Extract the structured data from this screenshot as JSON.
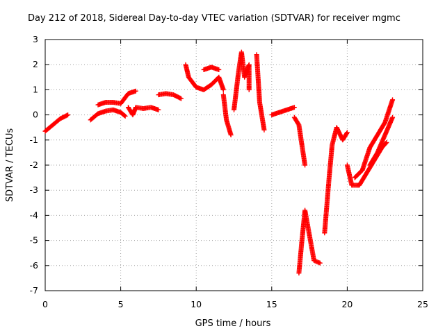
{
  "chart_data": {
    "type": "scatter",
    "title": "Day 212 of 2018, Sidereal Day-to-day VTEC variation (SDTVAR) for receiver mgmc",
    "xlabel": "GPS time / hours",
    "ylabel": "SDTVAR / TECUs",
    "xlim": [
      0,
      25
    ],
    "ylim": [
      -7,
      3
    ],
    "xticks": [
      "0",
      "5",
      "10",
      "15",
      "20",
      "25"
    ],
    "yticks": [
      "3",
      "2",
      "1",
      "0",
      "-1",
      "-2",
      "-3",
      "-4",
      "-5",
      "-6",
      "-7"
    ],
    "grid": true,
    "marker": "+",
    "series": [
      {
        "name": "SDTVAR",
        "color": "#ff0000",
        "segments": [
          [
            [
              0.0,
              -0.65
            ],
            [
              0.5,
              -0.4
            ],
            [
              1.0,
              -0.15
            ],
            [
              1.5,
              0.0
            ]
          ],
          [
            [
              3.0,
              -0.2
            ],
            [
              3.5,
              0.05
            ],
            [
              4.0,
              0.15
            ],
            [
              4.5,
              0.2
            ],
            [
              5.0,
              0.1
            ],
            [
              5.3,
              -0.05
            ]
          ],
          [
            [
              3.5,
              0.4
            ],
            [
              4.0,
              0.5
            ],
            [
              4.5,
              0.5
            ],
            [
              5.0,
              0.45
            ],
            [
              5.5,
              0.85
            ],
            [
              6.0,
              0.95
            ]
          ],
          [
            [
              5.5,
              0.3
            ],
            [
              5.8,
              0.0
            ],
            [
              6.0,
              0.3
            ],
            [
              6.5,
              0.25
            ],
            [
              7.0,
              0.3
            ],
            [
              7.5,
              0.2
            ]
          ],
          [
            [
              7.5,
              0.8
            ],
            [
              8.0,
              0.85
            ],
            [
              8.5,
              0.8
            ],
            [
              9.0,
              0.65
            ]
          ],
          [
            [
              9.3,
              2.0
            ],
            [
              9.5,
              1.5
            ],
            [
              10.0,
              1.1
            ],
            [
              10.5,
              1.0
            ],
            [
              11.0,
              1.2
            ],
            [
              11.5,
              1.5
            ],
            [
              11.8,
              1.0
            ]
          ],
          [
            [
              10.5,
              1.8
            ],
            [
              11.0,
              1.9
            ],
            [
              11.5,
              1.8
            ]
          ],
          [
            [
              11.8,
              0.8
            ],
            [
              12.0,
              -0.2
            ],
            [
              12.3,
              -0.8
            ]
          ],
          [
            [
              12.5,
              0.2
            ],
            [
              12.8,
              1.7
            ],
            [
              13.0,
              2.5
            ],
            [
              13.2,
              1.5
            ],
            [
              13.5,
              2.0
            ],
            [
              13.5,
              1.0
            ]
          ],
          [
            [
              14.0,
              2.4
            ],
            [
              14.2,
              0.5
            ],
            [
              14.5,
              -0.6
            ]
          ],
          [
            [
              15.0,
              0.0
            ],
            [
              15.5,
              0.1
            ],
            [
              16.0,
              0.2
            ],
            [
              16.5,
              0.3
            ]
          ],
          [
            [
              16.5,
              -0.1
            ],
            [
              16.8,
              -0.4
            ],
            [
              17.2,
              -2.0
            ]
          ],
          [
            [
              16.8,
              -6.3
            ],
            [
              17.0,
              -5.0
            ],
            [
              17.2,
              -3.8
            ],
            [
              17.5,
              -4.8
            ],
            [
              17.8,
              -5.8
            ],
            [
              18.2,
              -5.9
            ]
          ],
          [
            [
              18.5,
              -4.7
            ],
            [
              18.8,
              -2.5
            ],
            [
              19.0,
              -1.2
            ],
            [
              19.3,
              -0.5
            ],
            [
              19.7,
              -1.0
            ],
            [
              20.0,
              -0.7
            ]
          ],
          [
            [
              20.0,
              -2.0
            ],
            [
              20.3,
              -2.8
            ],
            [
              20.8,
              -2.8
            ],
            [
              21.3,
              -2.3
            ],
            [
              21.8,
              -1.8
            ],
            [
              22.3,
              -1.3
            ],
            [
              22.6,
              -1.1
            ]
          ],
          [
            [
              20.5,
              -2.5
            ],
            [
              21.0,
              -2.2
            ],
            [
              21.5,
              -1.3
            ],
            [
              22.0,
              -0.8
            ],
            [
              22.5,
              -0.3
            ],
            [
              23.0,
              0.6
            ]
          ],
          [
            [
              21.5,
              -2.0
            ],
            [
              22.0,
              -1.5
            ],
            [
              22.5,
              -0.8
            ],
            [
              23.0,
              -0.1
            ]
          ]
        ]
      }
    ]
  }
}
